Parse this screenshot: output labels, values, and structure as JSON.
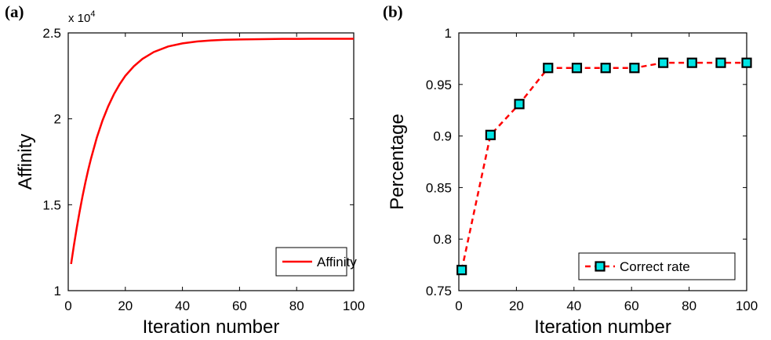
{
  "chart_data": [
    {
      "panel_label": "(a)",
      "type": "line",
      "xlabel": "Iteration number",
      "ylabel": "Affinity",
      "y_scale_note": "x 10",
      "y_scale_exponent": "4",
      "xlim": [
        0,
        100
      ],
      "ylim": [
        1,
        2.5
      ],
      "x_ticks": [
        "0",
        "20",
        "40",
        "60",
        "80",
        "100"
      ],
      "y_ticks": [
        "1",
        "1.5",
        "2",
        "2.5"
      ],
      "x_tick_values": [
        0,
        20,
        40,
        60,
        80,
        100
      ],
      "y_tick_values": [
        1,
        1.5,
        2,
        2.5
      ],
      "legend_position": "bottom-right",
      "series": [
        {
          "name": "Affinity",
          "color": "#ff0000",
          "marker": "none",
          "x": [
            1,
            2,
            3,
            4,
            5,
            6,
            7,
            8,
            10,
            12,
            14,
            16,
            18,
            20,
            23,
            26,
            30,
            35,
            40,
            45,
            50,
            55,
            60,
            65,
            70,
            75,
            80,
            85,
            90,
            95,
            100
          ],
          "y": [
            1.155,
            1.265,
            1.367,
            1.461,
            1.549,
            1.629,
            1.703,
            1.77,
            1.89,
            1.99,
            2.073,
            2.143,
            2.201,
            2.25,
            2.306,
            2.349,
            2.389,
            2.421,
            2.439,
            2.45,
            2.456,
            2.46,
            2.462,
            2.463,
            2.464,
            2.465,
            2.465,
            2.466,
            2.466,
            2.466,
            2.466
          ]
        }
      ]
    },
    {
      "panel_label": "(b)",
      "type": "line",
      "xlabel": "Iteration number",
      "ylabel": "Percentage",
      "xlim": [
        0,
        100
      ],
      "ylim": [
        0.75,
        1
      ],
      "x_ticks": [
        "0",
        "20",
        "40",
        "60",
        "80",
        "100"
      ],
      "y_ticks": [
        "0.75",
        "0.8",
        "0.85",
        "0.9",
        "0.95",
        "1"
      ],
      "x_tick_values": [
        0,
        20,
        40,
        60,
        80,
        100
      ],
      "y_tick_values": [
        0.75,
        0.8,
        0.85,
        0.9,
        0.95,
        1
      ],
      "legend_position": "bottom-right",
      "series": [
        {
          "name": "Correct rate",
          "color": "#ff0000",
          "marker_face": "#00e5e5",
          "marker_edge": "#000000",
          "line_style": "dashed",
          "marker": "square",
          "x": [
            1,
            11,
            21,
            31,
            41,
            51,
            61,
            71,
            81,
            91,
            100
          ],
          "y": [
            0.77,
            0.901,
            0.931,
            0.966,
            0.966,
            0.966,
            0.966,
            0.971,
            0.971,
            0.971,
            0.971
          ]
        }
      ]
    }
  ]
}
